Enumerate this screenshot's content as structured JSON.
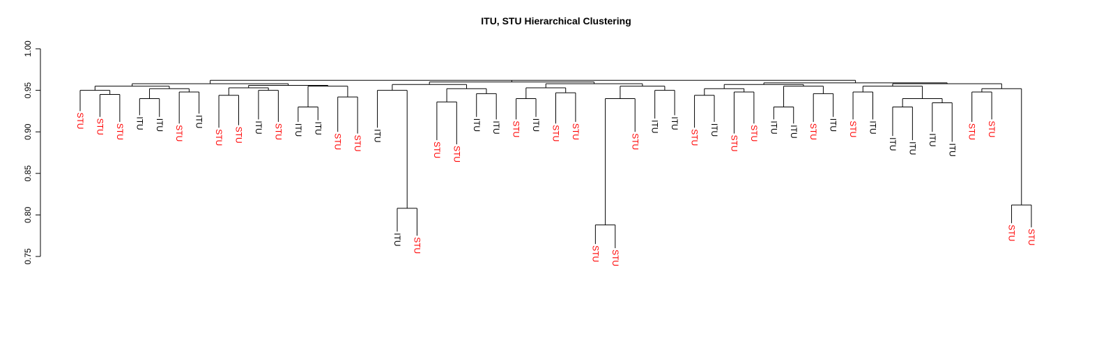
{
  "chart_data": {
    "type": "dendrogram",
    "title": "ITU, STU Hierarchical Clustering",
    "ylim": [
      0.75,
      1.0
    ],
    "yticks": [
      0.75,
      {
        "value": 0.8,
        "label": "0.80"
      },
      0.85,
      {
        "value": 0.9,
        "label": "0.90"
      },
      0.95,
      {
        "value": 1.0,
        "label": "1.00"
      }
    ],
    "label_colors": {
      "ITU": "#000000",
      "STU": "#ff0000"
    },
    "tree": {
      "height": 0.962,
      "children": [
        {
          "height": 0.958,
          "children": [
            {
              "height": 0.955,
              "children": [
                {
                  "height": 0.95,
                  "children": [
                    {
                      "label": "STU",
                      "height": 0.925
                    },
                    {
                      "height": 0.945,
                      "children": [
                        {
                          "label": "STU",
                          "height": 0.918
                        },
                        {
                          "label": "STU",
                          "height": 0.912
                        }
                      ]
                    }
                  ]
                },
                {
                  "height": 0.952,
                  "children": [
                    {
                      "height": 0.94,
                      "children": [
                        {
                          "label": "ITU",
                          "height": 0.92
                        },
                        {
                          "label": "ITU",
                          "height": 0.918
                        }
                      ]
                    },
                    {
                      "height": 0.948,
                      "children": [
                        {
                          "label": "STU",
                          "height": 0.91
                        },
                        {
                          "label": "ITU",
                          "height": 0.922
                        }
                      ]
                    }
                  ]
                }
              ]
            },
            {
              "height": 0.956,
              "children": [
                {
                  "height": 0.953,
                  "children": [
                    {
                      "height": 0.944,
                      "children": [
                        {
                          "label": "STU",
                          "height": 0.905
                        },
                        {
                          "label": "STU",
                          "height": 0.908
                        }
                      ]
                    },
                    {
                      "height": 0.95,
                      "children": [
                        {
                          "label": "ITU",
                          "height": 0.915
                        },
                        {
                          "label": "STU",
                          "height": 0.912
                        }
                      ]
                    }
                  ]
                },
                {
                  "height": 0.955,
                  "children": [
                    {
                      "height": 0.93,
                      "children": [
                        {
                          "label": "ITU",
                          "height": 0.912
                        },
                        {
                          "label": "ITU",
                          "height": 0.914
                        }
                      ]
                    },
                    {
                      "height": 0.942,
                      "children": [
                        {
                          "label": "STU",
                          "height": 0.9
                        },
                        {
                          "label": "STU",
                          "height": 0.898
                        }
                      ]
                    }
                  ]
                }
              ]
            }
          ]
        },
        {
          "height": 0.96,
          "children": [
            {
              "height": 0.957,
              "children": [
                {
                  "height": 0.95,
                  "children": [
                    {
                      "label": "ITU",
                      "height": 0.905
                    },
                    {
                      "height": 0.808,
                      "children": [
                        {
                          "label": "ITU",
                          "height": 0.78
                        },
                        {
                          "label": "STU",
                          "height": 0.775
                        }
                      ]
                    }
                  ]
                },
                {
                  "height": 0.952,
                  "children": [
                    {
                      "height": 0.936,
                      "children": [
                        {
                          "label": "STU",
                          "height": 0.89
                        },
                        {
                          "label": "STU",
                          "height": 0.885
                        }
                      ]
                    },
                    {
                      "height": 0.946,
                      "children": [
                        {
                          "label": "ITU",
                          "height": 0.918
                        },
                        {
                          "label": "ITU",
                          "height": 0.915
                        }
                      ]
                    }
                  ]
                }
              ]
            },
            {
              "height": 0.958,
              "children": [
                {
                  "height": 0.953,
                  "children": [
                    {
                      "height": 0.94,
                      "children": [
                        {
                          "label": "STU",
                          "height": 0.915
                        },
                        {
                          "label": "ITU",
                          "height": 0.918
                        }
                      ]
                    },
                    {
                      "height": 0.947,
                      "children": [
                        {
                          "label": "STU",
                          "height": 0.91
                        },
                        {
                          "label": "STU",
                          "height": 0.912
                        }
                      ]
                    }
                  ]
                },
                {
                  "height": 0.955,
                  "children": [
                    {
                      "height": 0.94,
                      "children": [
                        {
                          "height": 0.788,
                          "children": [
                            {
                              "label": "STU",
                              "height": 0.765
                            },
                            {
                              "label": "STU",
                              "height": 0.76
                            }
                          ]
                        },
                        {
                          "label": "STU",
                          "height": 0.9
                        }
                      ]
                    },
                    {
                      "height": 0.95,
                      "children": [
                        {
                          "label": "ITU",
                          "height": 0.916
                        },
                        {
                          "label": "ITU",
                          "height": 0.92
                        }
                      ]
                    }
                  ]
                }
              ]
            }
          ]
        },
        {
          "height": 0.959,
          "children": [
            {
              "height": 0.957,
              "children": [
                {
                  "height": 0.952,
                  "children": [
                    {
                      "height": 0.944,
                      "children": [
                        {
                          "label": "STU",
                          "height": 0.905
                        },
                        {
                          "label": "ITU",
                          "height": 0.912
                        }
                      ]
                    },
                    {
                      "height": 0.948,
                      "children": [
                        {
                          "label": "STU",
                          "height": 0.898
                        },
                        {
                          "label": "STU",
                          "height": 0.91
                        }
                      ]
                    }
                  ]
                },
                {
                  "height": 0.955,
                  "children": [
                    {
                      "height": 0.93,
                      "children": [
                        {
                          "label": "ITU",
                          "height": 0.915
                        },
                        {
                          "label": "ITU",
                          "height": 0.91
                        }
                      ]
                    },
                    {
                      "height": 0.946,
                      "children": [
                        {
                          "label": "STU",
                          "height": 0.912
                        },
                        {
                          "label": "ITU",
                          "height": 0.918
                        }
                      ]
                    }
                  ]
                }
              ]
            },
            {
              "height": 0.958,
              "children": [
                {
                  "height": 0.955,
                  "children": [
                    {
                      "height": 0.948,
                      "children": [
                        {
                          "label": "STU",
                          "height": 0.915
                        },
                        {
                          "label": "ITU",
                          "height": 0.915
                        }
                      ]
                    },
                    {
                      "height": 0.94,
                      "children": [
                        {
                          "height": 0.93,
                          "children": [
                            {
                              "label": "ITU",
                              "height": 0.895
                            },
                            {
                              "label": "ITU",
                              "height": 0.89
                            }
                          ]
                        },
                        {
                          "height": 0.935,
                          "children": [
                            {
                              "label": "ITU",
                              "height": 0.9
                            },
                            {
                              "label": "ITU",
                              "height": 0.888
                            }
                          ]
                        }
                      ]
                    }
                  ]
                },
                {
                  "height": 0.952,
                  "children": [
                    {
                      "height": 0.948,
                      "children": [
                        {
                          "label": "STU",
                          "height": 0.912
                        },
                        {
                          "label": "STU",
                          "height": 0.915
                        }
                      ]
                    },
                    {
                      "height": 0.812,
                      "children": [
                        {
                          "label": "STU",
                          "height": 0.79
                        },
                        {
                          "label": "STU",
                          "height": 0.785
                        }
                      ]
                    }
                  ]
                }
              ]
            }
          ]
        }
      ]
    }
  }
}
